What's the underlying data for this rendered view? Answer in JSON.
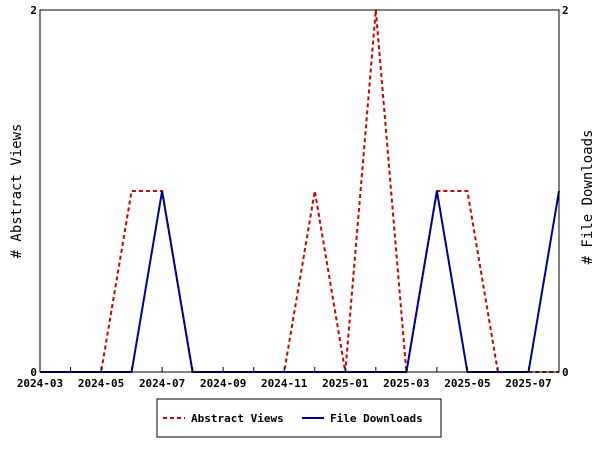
{
  "chart_data": {
    "type": "line",
    "x": [
      "2024-03",
      "2024-04",
      "2024-05",
      "2024-06",
      "2024-07",
      "2024-08",
      "2024-09",
      "2024-10",
      "2024-11",
      "2024-12",
      "2025-01",
      "2025-02",
      "2025-03",
      "2025-04",
      "2025-05",
      "2025-06",
      "2025-07",
      "2025-08"
    ],
    "x_tick_labels": [
      "2024-03",
      "2024-05",
      "2024-07",
      "2024-09",
      "2024-11",
      "2025-01",
      "2025-03",
      "2025-05",
      "2025-07"
    ],
    "series": [
      {
        "name": "Abstract Views",
        "values": [
          0,
          0,
          0,
          1,
          1,
          0,
          0,
          0,
          0,
          1,
          0,
          2,
          0,
          1,
          1,
          0,
          0,
          0
        ],
        "color": "#cc0000",
        "dash": "dashed"
      },
      {
        "name": "File Downloads",
        "values": [
          0,
          0,
          0,
          0,
          1,
          0,
          0,
          0,
          0,
          0,
          0,
          0,
          0,
          1,
          0,
          0,
          0,
          1
        ],
        "color": "#000099",
        "dash": "solid"
      }
    ],
    "ylabel_left": "# Abstract Views",
    "ylabel_right": "# File Downloads",
    "ylim": [
      0,
      2
    ],
    "y_ticks_left": [
      "0",
      "2"
    ],
    "y_ticks_right": [
      "0",
      "2"
    ],
    "grid": false,
    "legend_position": "bottom-center"
  }
}
